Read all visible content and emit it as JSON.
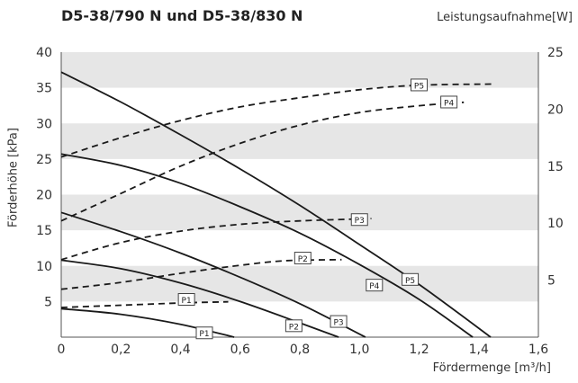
{
  "chart_data": {
    "type": "line",
    "title": "D5-38/790 N und D5-38/830 N",
    "xlabel": "Fördermenge [m³/h]",
    "ylabel": "Förderhöhe [kPa]",
    "y2label": "Leistungsaufnahme[W]",
    "xlim": [
      0,
      1.6
    ],
    "ylim": [
      0,
      40
    ],
    "y2lim": [
      0,
      25
    ],
    "x_ticks": [
      "0",
      "0,2",
      "0,4",
      "0,6",
      "0,8",
      "1,0",
      "1,2",
      "1,4",
      "1,6"
    ],
    "y_ticks": [
      "5",
      "10",
      "15",
      "20",
      "25",
      "30",
      "35",
      "40"
    ],
    "y2_ticks": [
      "5",
      "10",
      "15",
      "20",
      "25"
    ],
    "grid": "horizontal bands",
    "series": [
      {
        "name": "P1",
        "kind": "head",
        "x": [
          0,
          0.2,
          0.4,
          0.58
        ],
        "y": [
          4,
          3.2,
          1.8,
          0
        ]
      },
      {
        "name": "P2",
        "kind": "head",
        "x": [
          0,
          0.2,
          0.4,
          0.6,
          0.8,
          0.93
        ],
        "y": [
          10.8,
          9.6,
          7.6,
          5.0,
          2.0,
          0
        ]
      },
      {
        "name": "P3",
        "kind": "head",
        "x": [
          0,
          0.2,
          0.4,
          0.6,
          0.8,
          1.02
        ],
        "y": [
          17.5,
          14.8,
          11.8,
          8.4,
          4.7,
          0
        ]
      },
      {
        "name": "P4",
        "kind": "head",
        "x": [
          0,
          0.2,
          0.4,
          0.6,
          0.8,
          1.0,
          1.2,
          1.38
        ],
        "y": [
          25.7,
          24.1,
          21.6,
          18.3,
          14.6,
          10.2,
          5.3,
          0
        ]
      },
      {
        "name": "P5",
        "kind": "head",
        "x": [
          0,
          0.2,
          0.4,
          0.6,
          0.8,
          1.0,
          1.2,
          1.44
        ],
        "y": [
          37.2,
          33.0,
          28.4,
          23.6,
          18.5,
          13.0,
          7.4,
          0
        ]
      },
      {
        "name": "P1",
        "kind": "power",
        "x": [
          0,
          0.2,
          0.4,
          0.56
        ],
        "y": [
          2.6,
          2.8,
          3.0,
          3.1
        ]
      },
      {
        "name": "P2",
        "kind": "power",
        "x": [
          0,
          0.2,
          0.4,
          0.6,
          0.75,
          0.94
        ],
        "y": [
          4.2,
          4.8,
          5.6,
          6.3,
          6.7,
          6.8
        ]
      },
      {
        "name": "P3",
        "kind": "power",
        "x": [
          0,
          0.2,
          0.4,
          0.6,
          0.8,
          1.04
        ],
        "y": [
          6.8,
          8.3,
          9.3,
          9.9,
          10.2,
          10.4
        ]
      },
      {
        "name": "P4",
        "kind": "power",
        "x": [
          0,
          0.2,
          0.4,
          0.6,
          0.8,
          1.0,
          1.2,
          1.35
        ],
        "y": [
          10.2,
          12.6,
          15.0,
          17.0,
          18.6,
          19.7,
          20.3,
          20.6
        ]
      },
      {
        "name": "P5",
        "kind": "power",
        "x": [
          0,
          0.2,
          0.4,
          0.6,
          0.8,
          1.0,
          1.2,
          1.45
        ],
        "y": [
          15.8,
          17.5,
          19.0,
          20.2,
          21.0,
          21.7,
          22.1,
          22.2
        ]
      }
    ],
    "labels": [
      {
        "text": "P1",
        "x": 0.48,
        "y": 0.6
      },
      {
        "text": "P2",
        "x": 0.78,
        "y": 1.6
      },
      {
        "text": "P3",
        "x": 0.93,
        "y": 2.2
      },
      {
        "text": "P4",
        "x": 1.05,
        "y": 7.3
      },
      {
        "text": "P5",
        "x": 1.17,
        "y": 8.1
      },
      {
        "text": "P1",
        "x": 0.42,
        "y": 5.3
      },
      {
        "text": "P2",
        "x": 0.81,
        "y": 11.1
      },
      {
        "text": "P3",
        "x": 1.0,
        "y": 16.5
      },
      {
        "text": "P4",
        "x": 1.3,
        "y": 33.0
      },
      {
        "text": "P5",
        "x": 1.2,
        "y": 35.4
      }
    ]
  }
}
